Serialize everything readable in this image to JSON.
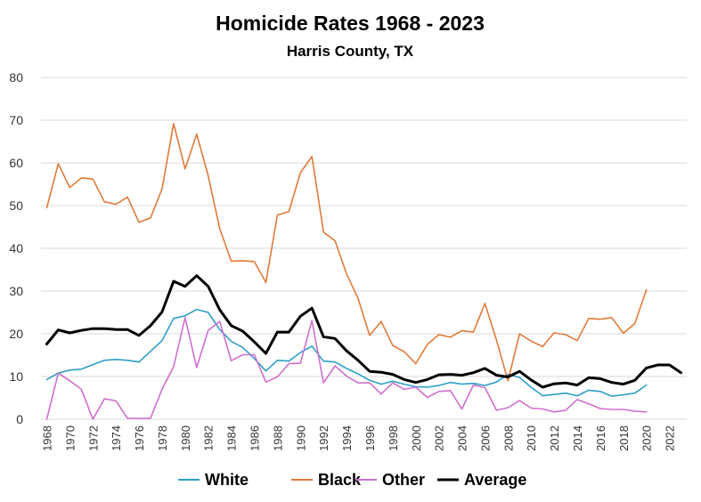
{
  "chart_data": {
    "type": "line",
    "title": "Homicide Rates 1968 - 2023",
    "subtitle": "Harris County, TX",
    "xlabel": "",
    "ylabel": "",
    "ylim": [
      0,
      80
    ],
    "yticks": [
      0,
      10,
      20,
      30,
      40,
      50,
      60,
      70,
      80
    ],
    "xticks": [
      1968,
      1970,
      1972,
      1974,
      1976,
      1978,
      1980,
      1982,
      1984,
      1986,
      1988,
      1990,
      1992,
      1994,
      1996,
      1998,
      2000,
      2002,
      2004,
      2006,
      2008,
      2010,
      2012,
      2014,
      2016,
      2018,
      2020,
      2022
    ],
    "grid": true,
    "legend": "bottom",
    "x": [
      1968,
      1969,
      1970,
      1971,
      1972,
      1973,
      1974,
      1975,
      1976,
      1977,
      1978,
      1979,
      1980,
      1981,
      1982,
      1983,
      1984,
      1985,
      1986,
      1987,
      1988,
      1989,
      1990,
      1991,
      1992,
      1993,
      1994,
      1995,
      1996,
      1997,
      1998,
      1999,
      2000,
      2001,
      2002,
      2003,
      2004,
      2005,
      2006,
      2007,
      2008,
      2009,
      2010,
      2011,
      2012,
      2013,
      2014,
      2015,
      2016,
      2017,
      2018,
      2019,
      2020,
      2021,
      2022,
      2023
    ],
    "series": [
      {
        "name": "White",
        "color": "#2e9fc9",
        "values": [
          9.3,
          10.8,
          11.5,
          11.7,
          12.8,
          13.8,
          14.0,
          13.8,
          13.4,
          15.9,
          18.4,
          23.6,
          24.2,
          25.7,
          25.0,
          21.0,
          18.2,
          16.8,
          14.2,
          11.3,
          13.8,
          13.6,
          15.6,
          17.1,
          13.6,
          13.4,
          11.9,
          10.6,
          9.1,
          8.2,
          8.9,
          8.2,
          7.6,
          7.5,
          7.9,
          8.6,
          8.2,
          8.4,
          7.9,
          8.7,
          10.5,
          9.8,
          7.5,
          5.5,
          5.8,
          6.1,
          5.5,
          6.8,
          6.5,
          5.4,
          5.7,
          6.1,
          8.0,
          null,
          null,
          null
        ]
      },
      {
        "name": "Black",
        "color": "#e07b39",
        "values": [
          49.5,
          59.8,
          54.2,
          56.5,
          56.2,
          50.9,
          50.3,
          52.0,
          46.1,
          47.1,
          53.9,
          69.2,
          58.6,
          66.7,
          57.0,
          44.6,
          37.0,
          37.1,
          36.9,
          32.0,
          47.8,
          48.6,
          57.7,
          61.5,
          43.8,
          41.8,
          34.0,
          28.3,
          19.6,
          22.9,
          17.3,
          15.8,
          13.0,
          17.5,
          19.8,
          19.2,
          20.7,
          20.4,
          27.1,
          18.5,
          9.0,
          20.0,
          18.3,
          17.0,
          20.2,
          19.8,
          18.4,
          23.6,
          23.4,
          23.8,
          20.1,
          22.4,
          30.3,
          null,
          null,
          null
        ]
      },
      {
        "name": "Other",
        "color": "#cf6fce",
        "values": [
          0,
          10.8,
          9.0,
          7.0,
          0,
          4.8,
          4.3,
          0.2,
          0.2,
          0.2,
          7.0,
          12.3,
          23.8,
          12.1,
          20.8,
          22.9,
          13.7,
          15.1,
          15.1,
          8.7,
          9.9,
          13.0,
          13.1,
          23.1,
          8.5,
          12.5,
          10.1,
          8.5,
          8.5,
          5.9,
          8.5,
          7.0,
          7.5,
          5.1,
          6.5,
          6.7,
          2.4,
          8.0,
          7.4,
          2.1,
          2.7,
          4.4,
          2.6,
          2.4,
          1.7,
          2.1,
          4.6,
          3.6,
          2.5,
          2.3,
          2.3,
          1.9,
          1.7,
          null,
          null,
          null
        ]
      },
      {
        "name": "Average",
        "color": "#000000",
        "values": [
          17.6,
          20.9,
          20.2,
          20.8,
          21.2,
          21.2,
          21.0,
          21.0,
          19.6,
          21.9,
          25.1,
          32.3,
          31.1,
          33.6,
          31.1,
          25.6,
          21.9,
          20.6,
          18.1,
          15.4,
          20.4,
          20.4,
          24.1,
          26.0,
          19.3,
          18.9,
          16.0,
          13.8,
          11.2,
          11.0,
          10.5,
          9.3,
          8.6,
          9.3,
          10.4,
          10.5,
          10.3,
          10.9,
          11.9,
          10.3,
          9.9,
          11.2,
          9.2,
          7.5,
          8.3,
          8.5,
          8.0,
          9.7,
          9.5,
          8.6,
          8.2,
          9.1,
          12.0,
          12.7,
          12.7,
          10.9
        ]
      }
    ]
  }
}
